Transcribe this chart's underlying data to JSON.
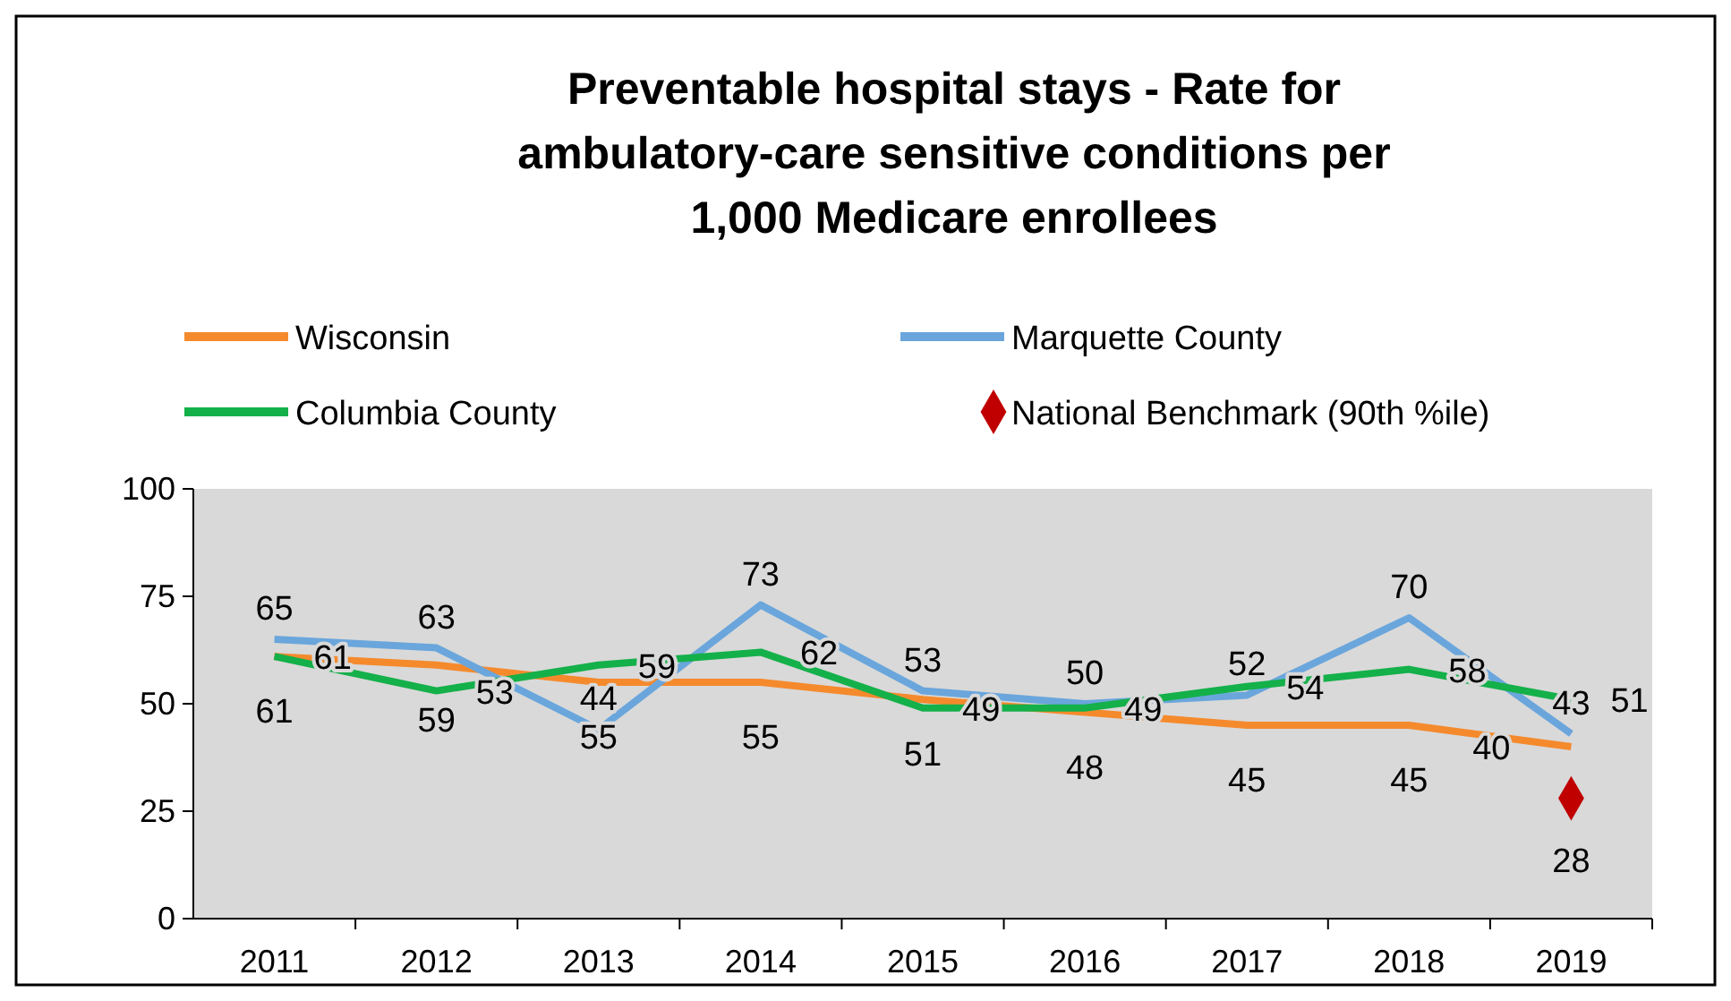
{
  "chart_data": {
    "type": "line",
    "title": "Preventable hospital stays - Rate for ambulatory-care sensitive conditions per 1,000 Medicare enrollees",
    "categories": [
      "2011",
      "2012",
      "2013",
      "2014",
      "2015",
      "2016",
      "2017",
      "2018",
      "2019"
    ],
    "series": [
      {
        "name": "Wisconsin",
        "color": "#f58a2c",
        "values": [
          61,
          59,
          55,
          55,
          51,
          48,
          45,
          45,
          40
        ]
      },
      {
        "name": "Marquette County",
        "color": "#6aa6dc",
        "values": [
          65,
          63,
          44,
          73,
          53,
          50,
          52,
          70,
          43
        ]
      },
      {
        "name": "Columbia County",
        "color": "#14b04a",
        "values": [
          61,
          53,
          59,
          62,
          49,
          49,
          54,
          58,
          51
        ]
      },
      {
        "name": "National Benchmark (90th %ile)",
        "type": "scatter",
        "marker": "diamond",
        "color": "#c00000",
        "values": [
          null,
          null,
          null,
          null,
          null,
          null,
          null,
          null,
          28
        ]
      }
    ],
    "ylim": [
      0,
      100
    ],
    "yticks": [
      0,
      25,
      50,
      75,
      100
    ],
    "grid": false,
    "legend": "top",
    "marker": "none",
    "line_style": "solid",
    "data_labels": true
  }
}
